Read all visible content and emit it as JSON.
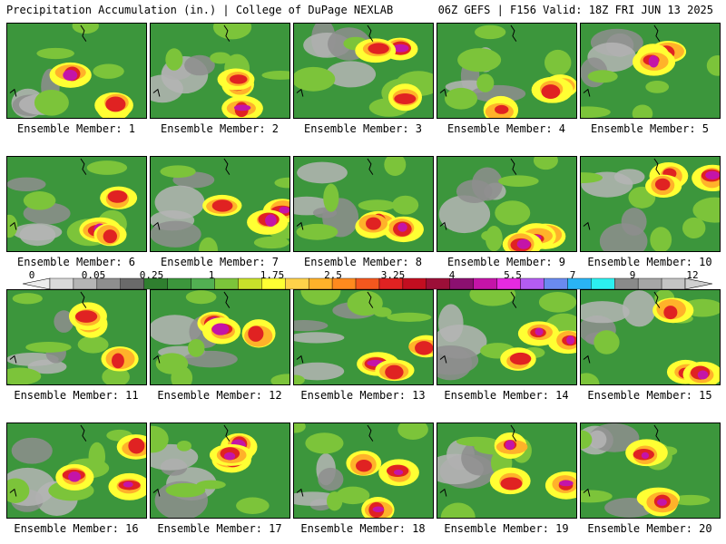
{
  "header": {
    "left_title": "Precipitation Accumulation (in.) | College of DuPage NEXLAB",
    "right_title": "06Z GEFS | F156 Valid: 18Z FRI JUN 13 2025"
  },
  "colorbar": {
    "tick_labels": [
      "0",
      "0.05",
      "0.25",
      "1",
      "1.75",
      "2.5",
      "3.25",
      "4",
      "5.5",
      "7",
      "9",
      "12"
    ],
    "colors": [
      "#d9d9d9",
      "#b5b5b5",
      "#8e8e8e",
      "#6a6a6a",
      "#2f7f2f",
      "#3c963c",
      "#52b052",
      "#7cc43a",
      "#c8e12a",
      "#ffff33",
      "#ffd24a",
      "#ffb22a",
      "#ff8a1e",
      "#f4571e",
      "#e02222",
      "#c20e20",
      "#9c0f38",
      "#8c1070",
      "#c414a8",
      "#e62ae0",
      "#b45cf2",
      "#6a8af0",
      "#2ab4f4",
      "#2cf0f0",
      "#8a8a8a",
      "#a6a6a6",
      "#c4c4c4"
    ]
  },
  "members": [
    {
      "label": "Ensemble Member: 1"
    },
    {
      "label": "Ensemble Member: 2"
    },
    {
      "label": "Ensemble Member: 3"
    },
    {
      "label": "Ensemble Member: 4"
    },
    {
      "label": "Ensemble Member: 5"
    },
    {
      "label": "Ensemble Member: 6"
    },
    {
      "label": "Ensemble Member: 7"
    },
    {
      "label": "Ensemble Member: 8"
    },
    {
      "label": "Ensemble Member: 9"
    },
    {
      "label": "Ensemble Member: 10"
    },
    {
      "label": "Ensemble Member: 11"
    },
    {
      "label": "Ensemble Member: 12"
    },
    {
      "label": "Ensemble Member: 13"
    },
    {
      "label": "Ensemble Member: 14"
    },
    {
      "label": "Ensemble Member: 15"
    },
    {
      "label": "Ensemble Member: 16"
    },
    {
      "label": "Ensemble Member: 17"
    },
    {
      "label": "Ensemble Member: 18"
    },
    {
      "label": "Ensemble Member: 19"
    },
    {
      "label": "Ensemble Member: 20"
    }
  ]
}
